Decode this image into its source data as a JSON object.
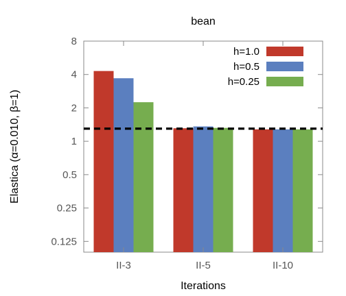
{
  "chart_data": {
    "type": "bar",
    "title": "bean",
    "xlabel": "Iterations",
    "ylabel": "Elastica (α=0.010, β=1)",
    "yscale": "log2",
    "ylim": [
      0.1,
      8
    ],
    "yticks": [
      0.125,
      0.25,
      0.5,
      1,
      2,
      4,
      8
    ],
    "ytick_labels": [
      "0.125",
      "0.25",
      "0.5",
      "1",
      "2",
      "4",
      "8"
    ],
    "categories": [
      "II-3",
      "II-5",
      "II-10"
    ],
    "series": [
      {
        "name": "h=1.0",
        "color": "#c0392b",
        "values": [
          4.3,
          1.31,
          1.28
        ]
      },
      {
        "name": "h=0.5",
        "color": "#5b7fbf",
        "values": [
          3.7,
          1.36,
          1.28
        ]
      },
      {
        "name": "h=0.25",
        "color": "#76ad4f",
        "values": [
          2.25,
          1.32,
          1.28
        ]
      }
    ],
    "reference_line": {
      "value": 1.3,
      "style": "dashed"
    },
    "legend_position": "top-right",
    "grid": false
  }
}
